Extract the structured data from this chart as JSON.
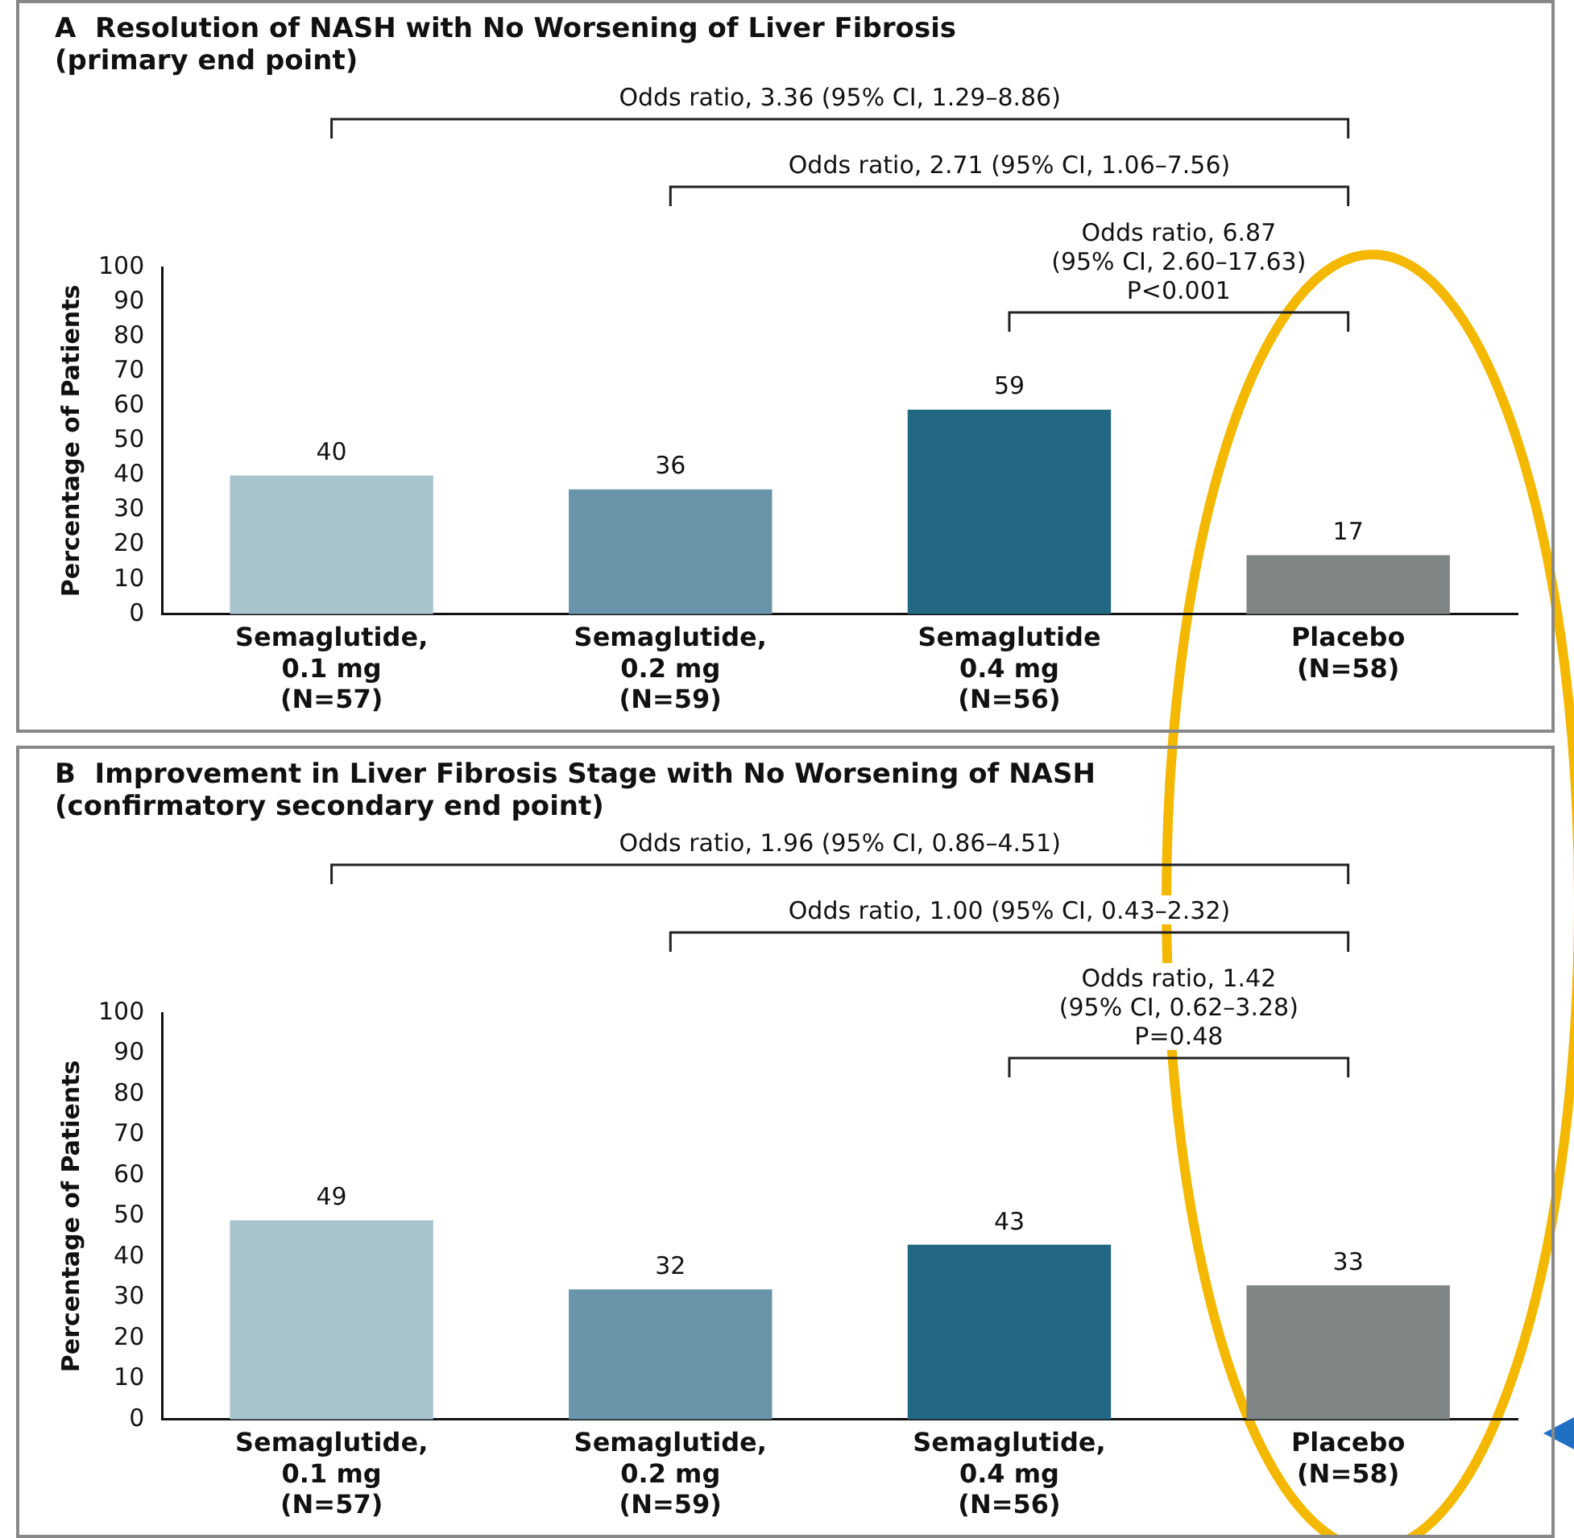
{
  "chart_data": [
    {
      "type": "bar",
      "title": "A  Resolution of NASH with No Worsening of Liver Fibrosis\n(primary end point)",
      "ylabel": "Percentage of Patients",
      "categories": [
        "Semaglutide,\n0.1 mg\n(N=57)",
        "Semaglutide,\n0.2 mg\n(N=59)",
        "Semaglutide\n0.4 mg\n(N=56)",
        "Placebo\n(N=58)"
      ],
      "values": [
        40,
        36,
        59,
        17
      ],
      "colors": [
        "#a9c3cd",
        "#6995ab",
        "#236882",
        "#7e8584"
      ],
      "ylim": [
        0,
        100
      ],
      "yticks": [
        0,
        10,
        20,
        30,
        40,
        50,
        60,
        70,
        80,
        90,
        100
      ],
      "grid": false,
      "legend": false,
      "data_labels": true,
      "annotations": [
        "Odds ratio, 3.36 (95% CI, 1.29–8.86)",
        "Odds ratio, 2.71 (95% CI, 1.06–7.56)",
        "Odds ratio, 6.87\n(95% CI, 2.60–17.63)\nP<0.001"
      ]
    },
    {
      "type": "bar",
      "title": "B  Improvement in Liver Fibrosis Stage with No Worsening of NASH\n(confirmatory secondary end point)",
      "ylabel": "Percentage of Patients",
      "categories": [
        "Semaglutide,\n0.1 mg\n(N=57)",
        "Semaglutide,\n0.2 mg\n(N=59)",
        "Semaglutide,\n0.4 mg\n(N=56)",
        "Placebo\n(N=58)"
      ],
      "values": [
        49,
        32,
        43,
        33
      ],
      "colors": [
        "#a9c3cd",
        "#6995ab",
        "#236882",
        "#7e8584"
      ],
      "ylim": [
        0,
        100
      ],
      "yticks": [
        0,
        10,
        20,
        30,
        40,
        50,
        60,
        70,
        80,
        90,
        100
      ],
      "grid": false,
      "legend": false,
      "data_labels": true,
      "annotations": [
        "Odds ratio, 1.96 (95% CI, 0.86–4.51)",
        "Odds ratio, 1.00 (95% CI, 0.43–2.32)",
        "Odds ratio, 1.42\n(95% CI, 0.62–3.28)\nP=0.48"
      ]
    }
  ]
}
